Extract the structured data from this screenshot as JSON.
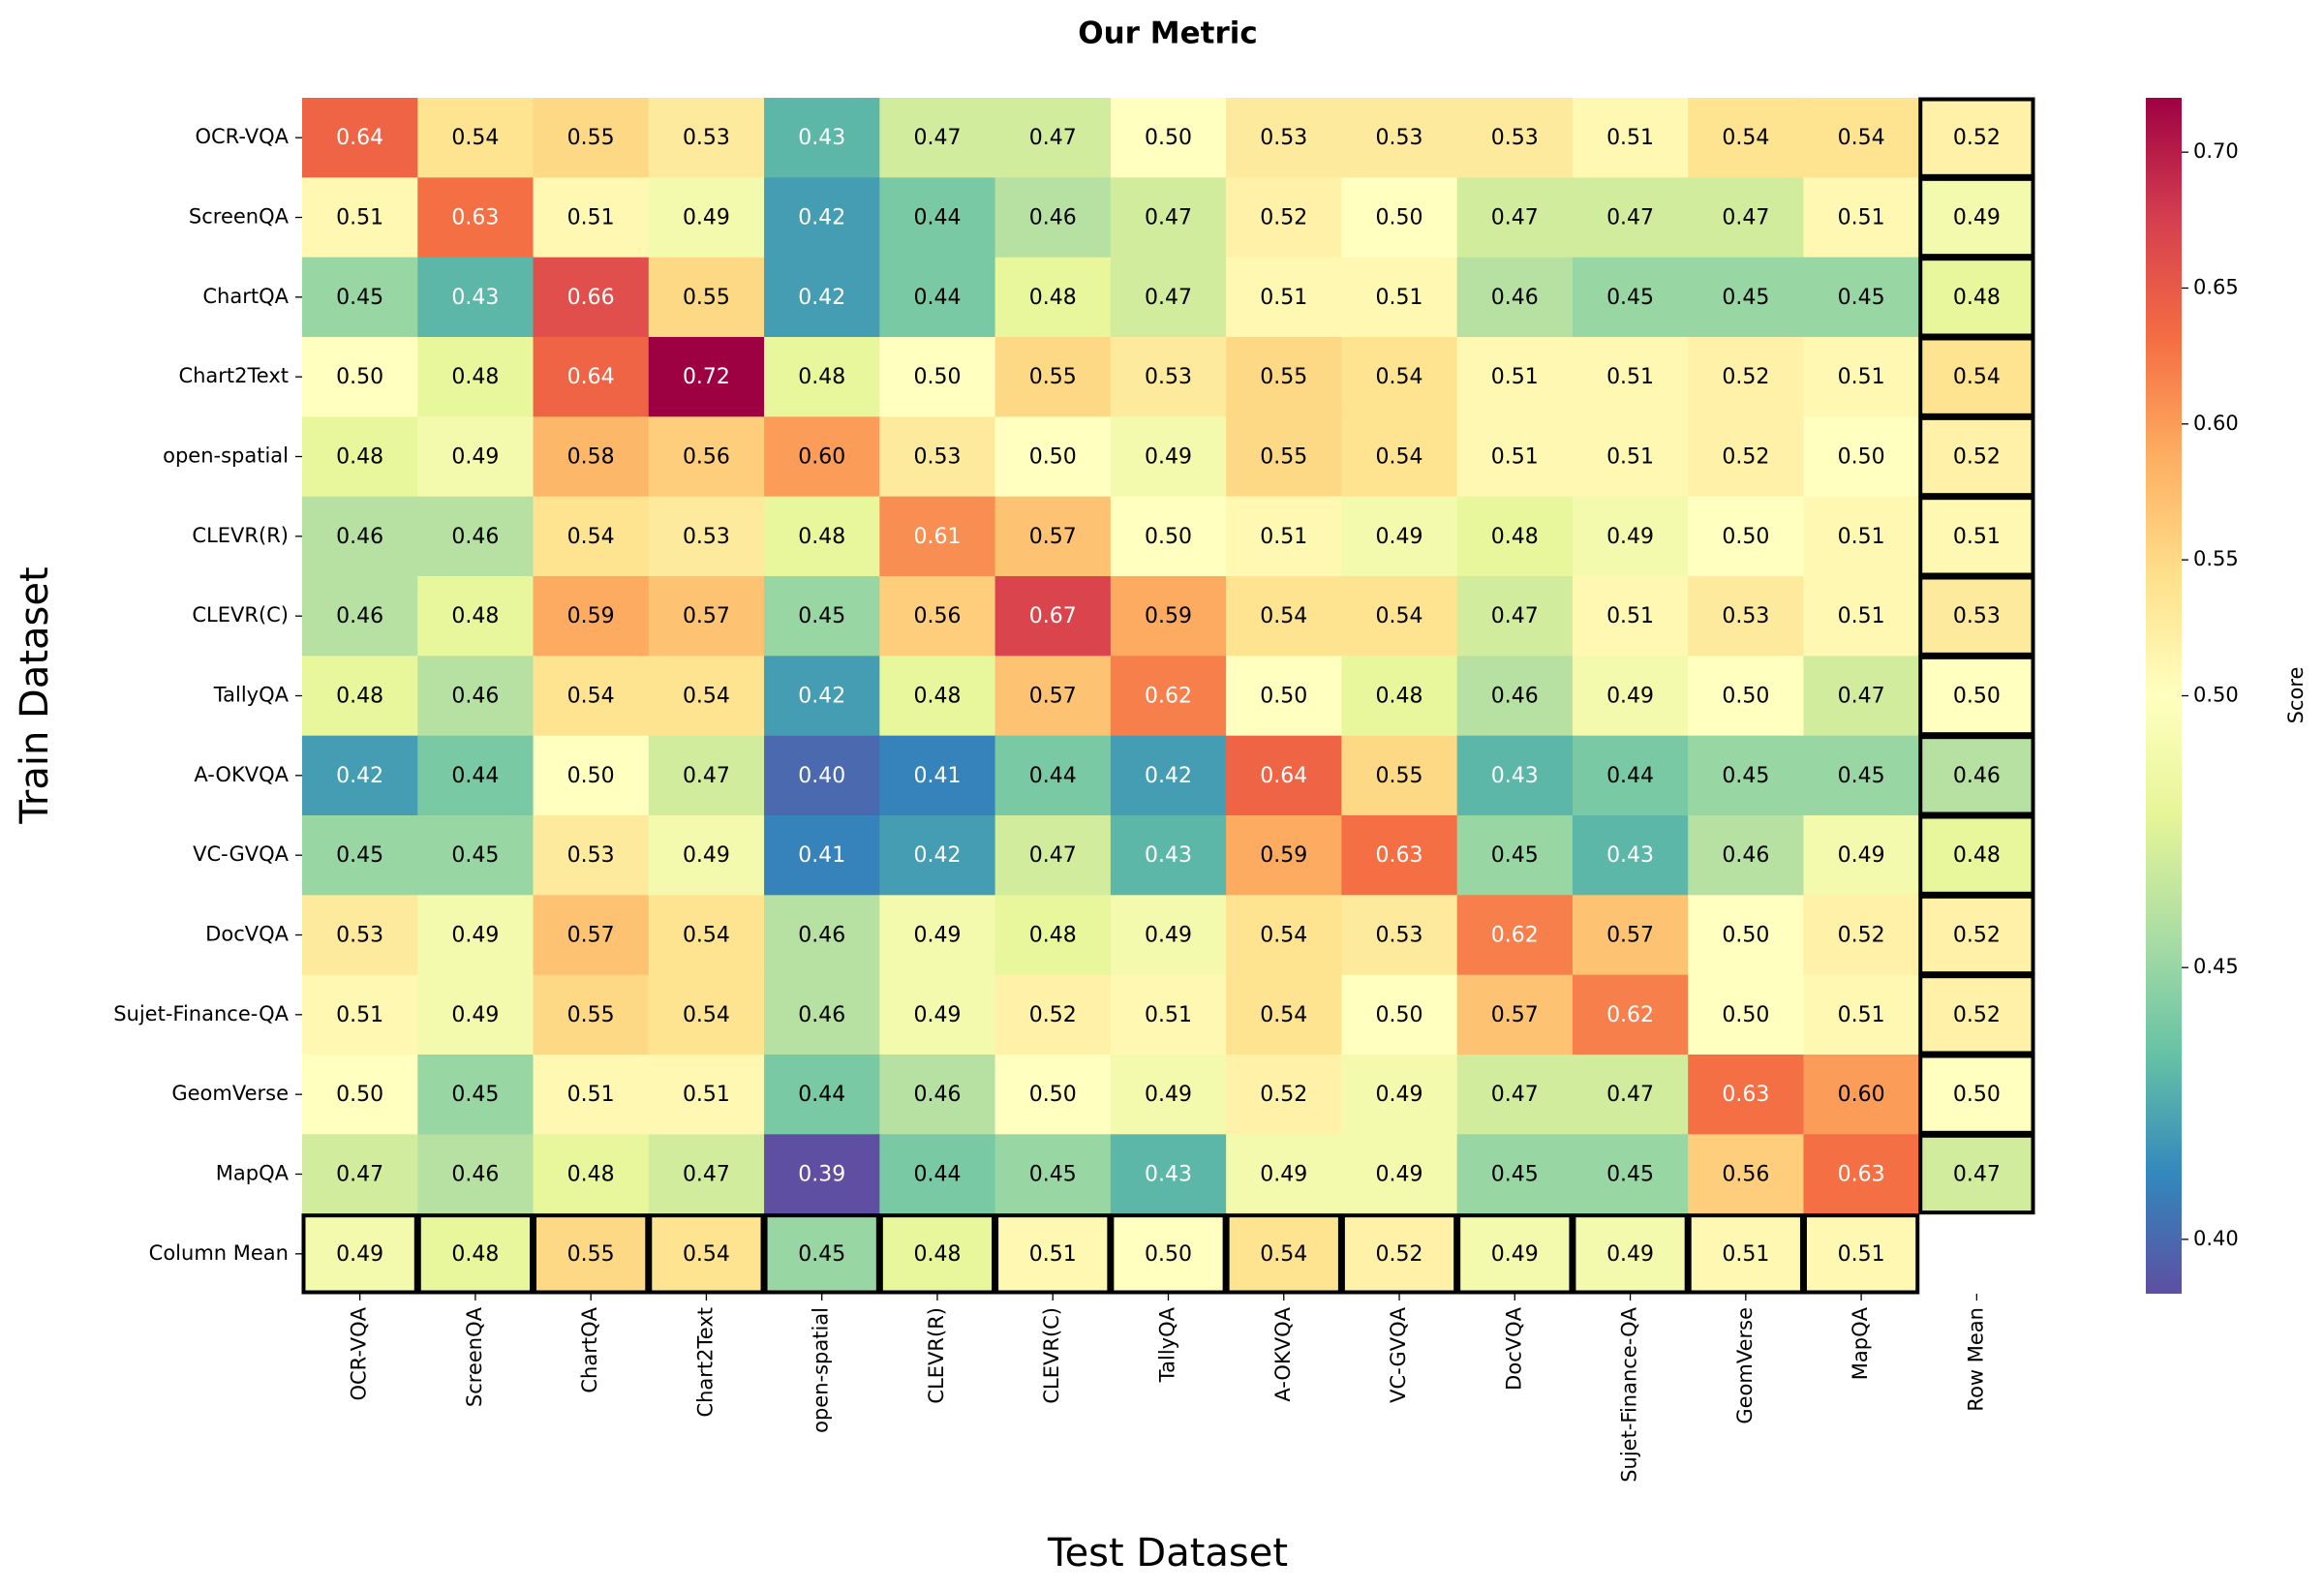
{
  "chart_data": {
    "type": "heatmap",
    "title": "Our Metric",
    "x_label": "Test Dataset",
    "y_label": "Train Dataset",
    "colorbar_label": "Score",
    "x_categories": [
      "OCR-VQA",
      "ScreenQA",
      "ChartQA",
      "Chart2Text",
      "open-spatial",
      "CLEVR(R)",
      "CLEVR(C)",
      "TallyQA",
      "A-OKVQA",
      "VC-GVQA",
      "DocVQA",
      "Sujet-Finance-QA",
      "GeomVerse",
      "MapQA",
      "Row Mean"
    ],
    "y_categories": [
      "OCR-VQA",
      "ScreenQA",
      "ChartQA",
      "Chart2Text",
      "open-spatial",
      "CLEVR(R)",
      "CLEVR(C)",
      "TallyQA",
      "A-OKVQA",
      "VC-GVQA",
      "DocVQA",
      "Sujet-Finance-QA",
      "GeomVerse",
      "MapQA",
      "Column Mean"
    ],
    "values": [
      [
        0.64,
        0.54,
        0.55,
        0.53,
        0.43,
        0.47,
        0.47,
        0.5,
        0.53,
        0.53,
        0.53,
        0.51,
        0.54,
        0.54,
        0.52
      ],
      [
        0.51,
        0.63,
        0.51,
        0.49,
        0.42,
        0.44,
        0.46,
        0.47,
        0.52,
        0.5,
        0.47,
        0.47,
        0.47,
        0.51,
        0.49
      ],
      [
        0.45,
        0.43,
        0.66,
        0.55,
        0.42,
        0.44,
        0.48,
        0.47,
        0.51,
        0.51,
        0.46,
        0.45,
        0.45,
        0.45,
        0.48
      ],
      [
        0.5,
        0.48,
        0.64,
        0.72,
        0.48,
        0.5,
        0.55,
        0.53,
        0.55,
        0.54,
        0.51,
        0.51,
        0.52,
        0.51,
        0.54
      ],
      [
        0.48,
        0.49,
        0.58,
        0.56,
        0.6,
        0.53,
        0.5,
        0.49,
        0.55,
        0.54,
        0.51,
        0.51,
        0.52,
        0.5,
        0.52
      ],
      [
        0.46,
        0.46,
        0.54,
        0.53,
        0.48,
        0.61,
        0.57,
        0.5,
        0.51,
        0.49,
        0.48,
        0.49,
        0.5,
        0.51,
        0.51
      ],
      [
        0.46,
        0.48,
        0.59,
        0.57,
        0.45,
        0.56,
        0.67,
        0.59,
        0.54,
        0.54,
        0.47,
        0.51,
        0.53,
        0.51,
        0.53
      ],
      [
        0.48,
        0.46,
        0.54,
        0.54,
        0.42,
        0.48,
        0.57,
        0.62,
        0.5,
        0.48,
        0.46,
        0.49,
        0.5,
        0.47,
        0.5
      ],
      [
        0.42,
        0.44,
        0.5,
        0.47,
        0.4,
        0.41,
        0.44,
        0.42,
        0.64,
        0.55,
        0.43,
        0.44,
        0.45,
        0.45,
        0.46
      ],
      [
        0.45,
        0.45,
        0.53,
        0.49,
        0.41,
        0.42,
        0.47,
        0.43,
        0.59,
        0.63,
        0.45,
        0.43,
        0.46,
        0.49,
        0.48
      ],
      [
        0.53,
        0.49,
        0.57,
        0.54,
        0.46,
        0.49,
        0.48,
        0.49,
        0.54,
        0.53,
        0.62,
        0.57,
        0.5,
        0.52,
        0.52
      ],
      [
        0.51,
        0.49,
        0.55,
        0.54,
        0.46,
        0.49,
        0.52,
        0.51,
        0.54,
        0.5,
        0.57,
        0.62,
        0.5,
        0.51,
        0.52
      ],
      [
        0.5,
        0.45,
        0.51,
        0.51,
        0.44,
        0.46,
        0.5,
        0.49,
        0.52,
        0.49,
        0.47,
        0.47,
        0.63,
        0.6,
        0.5
      ],
      [
        0.47,
        0.46,
        0.48,
        0.47,
        0.39,
        0.44,
        0.45,
        0.43,
        0.49,
        0.49,
        0.45,
        0.45,
        0.56,
        0.63,
        0.47
      ],
      [
        0.49,
        0.48,
        0.55,
        0.54,
        0.45,
        0.48,
        0.51,
        0.5,
        0.54,
        0.52,
        0.49,
        0.49,
        0.51,
        0.51,
        null
      ]
    ],
    "value_labels": [
      [
        "0.64",
        "0.54",
        "0.55",
        "0.53",
        "0.43",
        "0.47",
        "0.47",
        "0.50",
        "0.53",
        "0.53",
        "0.53",
        "0.51",
        "0.54",
        "0.54",
        "0.52"
      ],
      [
        "0.51",
        "0.63",
        "0.51",
        "0.49",
        "0.42",
        "0.44",
        "0.46",
        "0.47",
        "0.52",
        "0.50",
        "0.47",
        "0.47",
        "0.47",
        "0.51",
        "0.49"
      ],
      [
        "0.45",
        "0.43",
        "0.66",
        "0.55",
        "0.42",
        "0.44",
        "0.48",
        "0.47",
        "0.51",
        "0.51",
        "0.46",
        "0.45",
        "0.45",
        "0.45",
        "0.48"
      ],
      [
        "0.50",
        "0.48",
        "0.64",
        "0.72",
        "0.48",
        "0.50",
        "0.55",
        "0.53",
        "0.55",
        "0.54",
        "0.51",
        "0.51",
        "0.52",
        "0.51",
        "0.54"
      ],
      [
        "0.48",
        "0.49",
        "0.58",
        "0.56",
        "0.60",
        "0.53",
        "0.50",
        "0.49",
        "0.55",
        "0.54",
        "0.51",
        "0.51",
        "0.52",
        "0.50",
        "0.52"
      ],
      [
        "0.46",
        "0.46",
        "0.54",
        "0.53",
        "0.48",
        "0.61",
        "0.57",
        "0.50",
        "0.51",
        "0.49",
        "0.48",
        "0.49",
        "0.50",
        "0.51",
        "0.51"
      ],
      [
        "0.46",
        "0.48",
        "0.59",
        "0.57",
        "0.45",
        "0.56",
        "0.67",
        "0.59",
        "0.54",
        "0.54",
        "0.47",
        "0.51",
        "0.53",
        "0.51",
        "0.53"
      ],
      [
        "0.48",
        "0.46",
        "0.54",
        "0.54",
        "0.42",
        "0.48",
        "0.57",
        "0.62",
        "0.50",
        "0.48",
        "0.46",
        "0.49",
        "0.50",
        "0.47",
        "0.50"
      ],
      [
        "0.42",
        "0.44",
        "0.50",
        "0.47",
        "0.40",
        "0.41",
        "0.44",
        "0.42",
        "0.64",
        "0.55",
        "0.43",
        "0.44",
        "0.45",
        "0.45",
        "0.46"
      ],
      [
        "0.45",
        "0.45",
        "0.53",
        "0.49",
        "0.41",
        "0.42",
        "0.47",
        "0.43",
        "0.59",
        "0.63",
        "0.45",
        "0.43",
        "0.46",
        "0.49",
        "0.48"
      ],
      [
        "0.53",
        "0.49",
        "0.57",
        "0.54",
        "0.46",
        "0.49",
        "0.48",
        "0.49",
        "0.54",
        "0.53",
        "0.62",
        "0.57",
        "0.50",
        "0.52",
        "0.52"
      ],
      [
        "0.51",
        "0.49",
        "0.55",
        "0.54",
        "0.46",
        "0.49",
        "0.52",
        "0.51",
        "0.54",
        "0.50",
        "0.57",
        "0.62",
        "0.50",
        "0.51",
        "0.52"
      ],
      [
        "0.50",
        "0.45",
        "0.51",
        "0.51",
        "0.44",
        "0.46",
        "0.50",
        "0.49",
        "0.52",
        "0.49",
        "0.47",
        "0.47",
        "0.63",
        "0.60",
        "0.50"
      ],
      [
        "0.47",
        "0.46",
        "0.48",
        "0.47",
        "0.39",
        "0.44",
        "0.45",
        "0.43",
        "0.49",
        "0.49",
        "0.45",
        "0.45",
        "0.56",
        "0.63",
        "0.47"
      ],
      [
        "0.49",
        "0.48",
        "0.55",
        "0.54",
        "0.45",
        "0.48",
        "0.51",
        "0.50",
        "0.54",
        "0.52",
        "0.49",
        "0.49",
        "0.51",
        "0.51",
        null
      ]
    ],
    "zlim": [
      0.39,
      0.72
    ],
    "zcenter": 0.5,
    "zticks": [
      {
        "value": 0.4,
        "label": "0.40"
      },
      {
        "value": 0.45,
        "label": "0.45"
      },
      {
        "value": 0.5,
        "label": "0.50"
      },
      {
        "value": 0.55,
        "label": "0.55"
      },
      {
        "value": 0.6,
        "label": "0.60"
      },
      {
        "value": 0.65,
        "label": "0.65"
      },
      {
        "value": 0.7,
        "label": "0.70"
      }
    ],
    "colormap": [
      "#5e4fa2",
      "#3288bd",
      "#66c2a5",
      "#abdda4",
      "#e6f598",
      "#ffffbf",
      "#fee08b",
      "#fdae61",
      "#f46d43",
      "#d53e4f",
      "#9e0142"
    ]
  }
}
